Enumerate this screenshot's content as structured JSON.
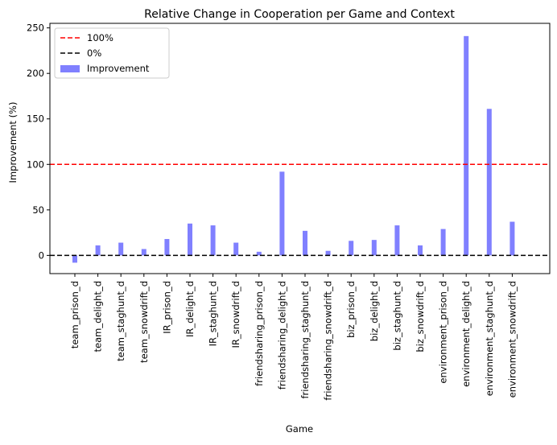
{
  "chart_data": {
    "type": "bar",
    "title": "Relative Change in Cooperation per Game and Context",
    "xlabel": "Game",
    "ylabel": "Improvement (%)",
    "ylim": [
      -20,
      255
    ],
    "yticks": [
      0,
      50,
      100,
      150,
      200,
      250
    ],
    "grid": false,
    "legend_position": "top-left",
    "categories": [
      "team_prison_d",
      "team_delight_d",
      "team_staghunt_d",
      "team_snowdrift_d",
      "IR_prison_d",
      "IR_delight_d",
      "IR_staghunt_d",
      "IR_snowdrift_d",
      "friendsharing_prison_d",
      "friendsharing_delight_d",
      "friendsharing_staghunt_d",
      "friendsharing_snowdrift_d",
      "biz_prison_d",
      "biz_delight_d",
      "biz_staghunt_d",
      "biz_snowdrift_d",
      "environment_prison_d",
      "environment_delight_d",
      "environment_staghunt_d",
      "environment_snowdrift_d"
    ],
    "series": [
      {
        "name": "Improvement",
        "color": "#8080ff",
        "values": [
          -8,
          11,
          14,
          7,
          18,
          35,
          33,
          14,
          4,
          92,
          27,
          5,
          16,
          17,
          33,
          11,
          29,
          241,
          161,
          37
        ]
      }
    ],
    "reference_lines": [
      {
        "name": "100%",
        "y": 100,
        "color": "#ff0000",
        "style": "dashed"
      },
      {
        "name": "0%",
        "y": 0,
        "color": "#000000",
        "style": "dashed"
      }
    ]
  }
}
